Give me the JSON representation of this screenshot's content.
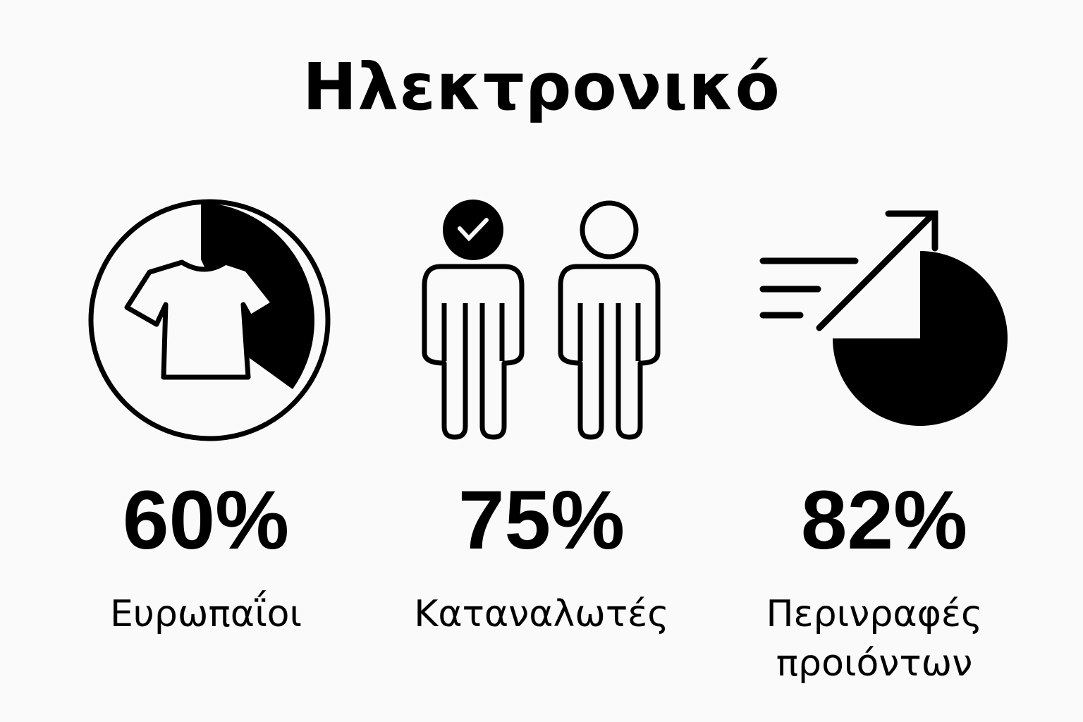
{
  "title": "Ηλεκτρονικό",
  "stats": [
    {
      "value": "60%",
      "label": "Ευρωπαΐοι",
      "icon": "tshirt-pie-icon",
      "fraction": 0.36
    },
    {
      "value": "75%",
      "label": "Καταναλωτές",
      "icon": "people-check-icon"
    },
    {
      "value": "82%",
      "label": "Περινραφές προιόντων",
      "icon": "growth-pie-icon",
      "fraction": 0.75
    }
  ],
  "colors": {
    "background": "#fafafa",
    "foreground": "#000000"
  }
}
